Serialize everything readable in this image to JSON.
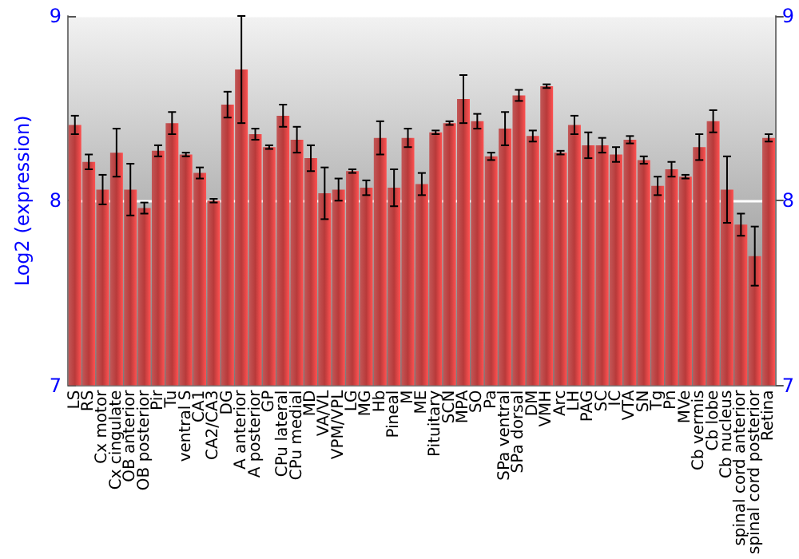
{
  "chart_data": {
    "type": "bar",
    "ylabel": "Log2 (expression)",
    "categories": [
      "LS",
      "RS",
      "Cx motor",
      "Cx cingulate",
      "OB anterior",
      "OB posterior",
      "Pir",
      "Tu",
      "ventral S",
      "CA1",
      "CA2/CA3",
      "DG",
      "A anterior",
      "A posterior",
      "GP",
      "CPu lateral",
      "CPu medial",
      "MD",
      "VA/VL",
      "VPM/VPL",
      "LG",
      "MG",
      "Hb",
      "Pineal",
      "M",
      "ME",
      "Pituitary",
      "SCN",
      "MPA",
      "SO",
      "Pa",
      "SPa ventral",
      "SPa dorsal",
      "DM",
      "VMH",
      "Arc",
      "LH",
      "PAG",
      "SC",
      "IC",
      "VTA",
      "SN",
      "Tg",
      "Pn",
      "MVe",
      "Cb vermis",
      "Cb lobe",
      "Cb nucleus",
      "spinal cord anterior",
      "spinal cord posterior",
      "Retina"
    ],
    "series": [
      {
        "color": "#b83a3a",
        "values": [
          8.41,
          8.21,
          8.06,
          8.26,
          8.06,
          7.96,
          8.27,
          8.42,
          8.25,
          8.15,
          8.0,
          8.52,
          8.71,
          8.36,
          8.29,
          8.46,
          8.33,
          8.23,
          8.04,
          8.06,
          8.16,
          8.07,
          8.34,
          8.07,
          8.34,
          8.09,
          8.37,
          8.42,
          8.55,
          8.43,
          8.24,
          8.39,
          8.57,
          8.35,
          8.62,
          8.26,
          8.41,
          8.3,
          8.3,
          8.25,
          8.33,
          8.22,
          8.08,
          8.17,
          8.13,
          8.29,
          8.43,
          8.06,
          7.87,
          7.7,
          8.34
        ],
        "errors": [
          0.05,
          0.04,
          0.08,
          0.13,
          0.14,
          0.03,
          0.03,
          0.06,
          0.01,
          0.03,
          0.01,
          0.07,
          0.29,
          0.03,
          0.01,
          0.06,
          0.07,
          0.07,
          0.14,
          0.06,
          0.01,
          0.04,
          0.09,
          0.1,
          0.05,
          0.06,
          0.01,
          0.01,
          0.13,
          0.04,
          0.02,
          0.09,
          0.03,
          0.03,
          0.01,
          0.01,
          0.05,
          0.07,
          0.04,
          0.04,
          0.02,
          0.02,
          0.05,
          0.04,
          0.01,
          0.07,
          0.06,
          0.18,
          0.06,
          0.16,
          0.02
        ]
      }
    ],
    "ylim": [
      7,
      9
    ],
    "yticks": [
      7,
      8,
      9
    ],
    "y2lim": [
      7,
      9
    ],
    "y2ticks": [
      7,
      8,
      9
    ],
    "grid": "y"
  }
}
